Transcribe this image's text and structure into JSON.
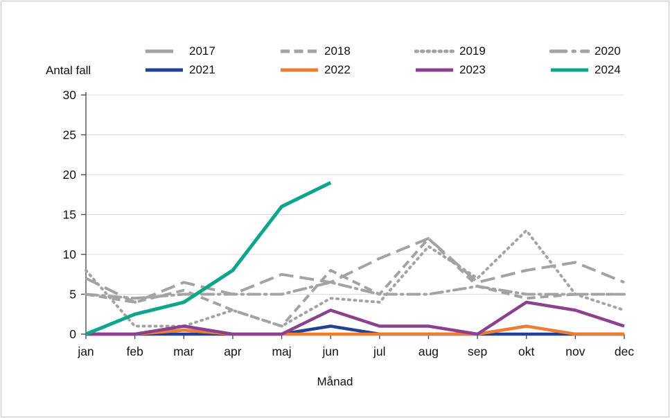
{
  "chart_data": {
    "type": "line",
    "title": "",
    "xlabel": "Månad",
    "ylabel": "Antal fall",
    "ylim": [
      0,
      30
    ],
    "ytick_step": 5,
    "grid": "horizontal",
    "legend_position": "top",
    "categories": [
      "jan",
      "feb",
      "mar",
      "apr",
      "maj",
      "jun",
      "jul",
      "aug",
      "sep",
      "okt",
      "nov",
      "dec"
    ],
    "series": [
      {
        "name": "2017",
        "color": "#A3A3A3",
        "dash": "long-dash",
        "values": [
          7,
          4,
          6.5,
          5,
          7.5,
          6.5,
          9.5,
          12,
          6.5,
          8,
          9,
          6.5
        ]
      },
      {
        "name": "2018",
        "color": "#A3A3A3",
        "dash": "dash",
        "values": [
          5,
          4,
          5.5,
          3,
          1,
          8,
          5,
          12,
          6,
          4.5,
          5,
          5
        ]
      },
      {
        "name": "2019",
        "color": "#A3A3A3",
        "dash": "dot",
        "values": [
          8,
          1,
          1,
          3,
          1,
          4.5,
          4,
          11,
          7,
          13,
          5,
          3
        ]
      },
      {
        "name": "2020",
        "color": "#A3A3A3",
        "dash": "dash-dot",
        "values": [
          5,
          4.5,
          5,
          5,
          5,
          6.5,
          5,
          5,
          6,
          5,
          5,
          5
        ]
      },
      {
        "name": "2021",
        "color": "#1F4293",
        "dash": "solid",
        "values": [
          0,
          0,
          0,
          0,
          0,
          1,
          0,
          0,
          0,
          0,
          0,
          0
        ]
      },
      {
        "name": "2022",
        "color": "#ED7D31",
        "dash": "solid",
        "values": [
          0,
          0,
          0.5,
          0,
          0,
          0,
          0,
          0,
          0,
          1,
          0,
          0
        ]
      },
      {
        "name": "2023",
        "color": "#8B4190",
        "dash": "solid",
        "values": [
          0,
          0,
          1,
          0,
          0,
          3,
          1,
          1,
          0,
          4,
          3,
          1
        ]
      },
      {
        "name": "2024",
        "color": "#0BA68C",
        "dash": "solid",
        "values": [
          0,
          2.5,
          4,
          8,
          16,
          19,
          null,
          null,
          null,
          null,
          null,
          null
        ]
      }
    ],
    "legend_rows": [
      [
        "2017",
        "2018",
        "2019",
        "2020"
      ],
      [
        "2021",
        "2022",
        "2023",
        "2024"
      ]
    ]
  }
}
